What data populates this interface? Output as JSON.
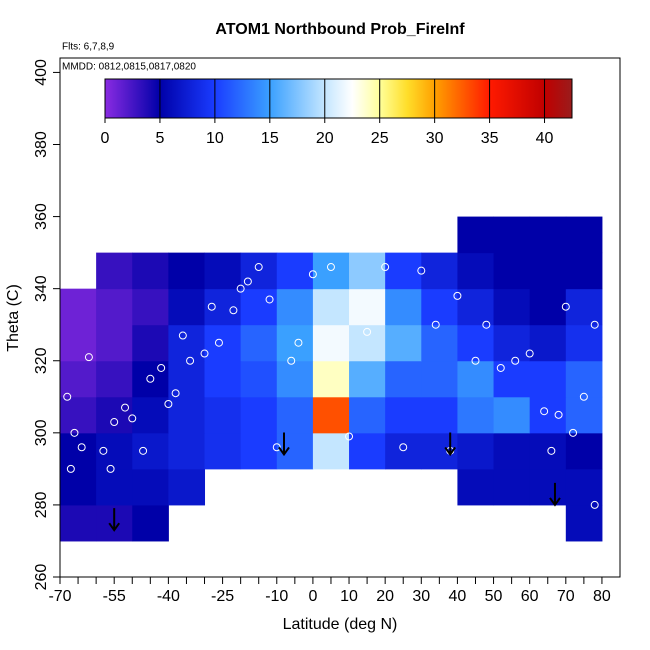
{
  "chart_data": {
    "type": "heatmap",
    "title": "ATOM1 Northbound Prob_FireInf",
    "subtitle": "Flts: 6,7,8,9",
    "annotation": "MMDD: 0812,0815,0817,0820",
    "x_label": "Latitude (deg N)",
    "y_label": "Theta (C)",
    "xlim": [
      -70,
      85
    ],
    "ylim": [
      260,
      404
    ],
    "xticks": [
      -70,
      -55,
      -40,
      -25,
      -10,
      0,
      10,
      20,
      30,
      40,
      50,
      60,
      70,
      80
    ],
    "x_minor_ticks": [
      -65,
      -60,
      -50,
      -45,
      -35,
      -30,
      -20,
      -15,
      -5,
      5,
      15,
      25,
      35,
      45,
      55,
      65,
      75
    ],
    "yticks": [
      260,
      280,
      300,
      320,
      340,
      360,
      380,
      400
    ],
    "colorbar": {
      "lim": [
        0,
        42.5
      ],
      "ticks": [
        0,
        5,
        10,
        15,
        20,
        25,
        30,
        35,
        40
      ],
      "colorscale": [
        [
          0,
          "#8a2be2"
        ],
        [
          5,
          "#0000a8"
        ],
        [
          10,
          "#1a3cff"
        ],
        [
          15,
          "#3aa0ff"
        ],
        [
          20,
          "#c4e6ff"
        ],
        [
          22.5,
          "#ffffff"
        ],
        [
          25,
          "#ffff9a"
        ],
        [
          27.5,
          "#ffde2a"
        ],
        [
          30,
          "#ffa000"
        ],
        [
          35,
          "#ff1a00"
        ],
        [
          40,
          "#c00000"
        ],
        [
          42.5,
          "#9a1c1c"
        ]
      ]
    },
    "field": {
      "lat_edges": [
        -70,
        -60,
        -50,
        -40,
        -30,
        -20,
        -10,
        0,
        10,
        20,
        30,
        40,
        50,
        60,
        70,
        80
      ],
      "theta_edges": [
        270,
        280,
        290,
        300,
        310,
        320,
        330,
        340,
        350,
        360
      ],
      "values": [
        [
          4,
          4,
          5,
          null,
          null,
          null,
          null,
          null,
          null,
          null,
          null,
          null,
          null,
          null,
          6
        ],
        [
          5,
          6,
          6,
          7,
          null,
          null,
          null,
          null,
          null,
          null,
          null,
          6,
          6,
          6,
          6
        ],
        [
          5,
          6,
          7,
          8,
          9,
          10,
          12,
          20,
          10,
          8,
          8,
          7,
          6,
          6,
          5
        ],
        [
          3,
          4,
          6,
          8,
          9,
          10,
          12,
          33,
          12,
          10,
          10,
          13,
          14,
          10,
          12
        ],
        [
          2,
          3,
          5,
          8,
          10,
          11,
          14,
          24,
          16,
          12,
          12,
          14,
          10,
          10,
          12
        ],
        [
          1,
          2,
          4,
          8,
          10,
          12,
          15,
          22,
          20,
          16,
          12,
          10,
          8,
          7,
          9
        ],
        [
          1,
          2,
          3,
          6,
          8,
          10,
          14,
          20,
          22,
          14,
          10,
          8,
          6,
          5,
          8
        ],
        [
          null,
          3,
          4,
          5,
          6,
          8,
          10,
          15,
          18,
          10,
          8,
          6,
          5,
          5,
          5
        ],
        [
          null,
          null,
          null,
          null,
          null,
          null,
          null,
          null,
          null,
          null,
          null,
          5,
          5,
          5,
          5
        ]
      ]
    },
    "flight_points": {
      "lat": [
        -68,
        -67,
        -66,
        -64,
        -62,
        -58,
        -56,
        -55,
        -52,
        -50,
        -47,
        -45,
        -42,
        -40,
        -38,
        -36,
        -34,
        -30,
        -28,
        -26,
        -22,
        -20,
        -18,
        -15,
        -12,
        -10,
        -6,
        -4,
        0,
        5,
        10,
        15,
        20,
        25,
        30,
        34,
        38,
        40,
        45,
        48,
        52,
        56,
        60,
        64,
        66,
        68,
        70,
        72,
        75,
        78,
        78
      ],
      "theta": [
        310,
        290,
        300,
        296,
        321,
        295,
        290,
        303,
        307,
        304,
        295,
        315,
        318,
        308,
        311,
        327,
        320,
        322,
        335,
        325,
        334,
        340,
        342,
        346,
        337,
        296,
        320,
        325,
        344,
        346,
        299,
        328,
        346,
        296,
        345,
        330,
        295,
        338,
        320,
        330,
        318,
        320,
        322,
        306,
        295,
        305,
        335,
        300,
        310,
        330,
        280
      ]
    },
    "arrows": {
      "lat": [
        -55,
        -8,
        38,
        67
      ],
      "theta": [
        273,
        294,
        294,
        280
      ]
    }
  }
}
